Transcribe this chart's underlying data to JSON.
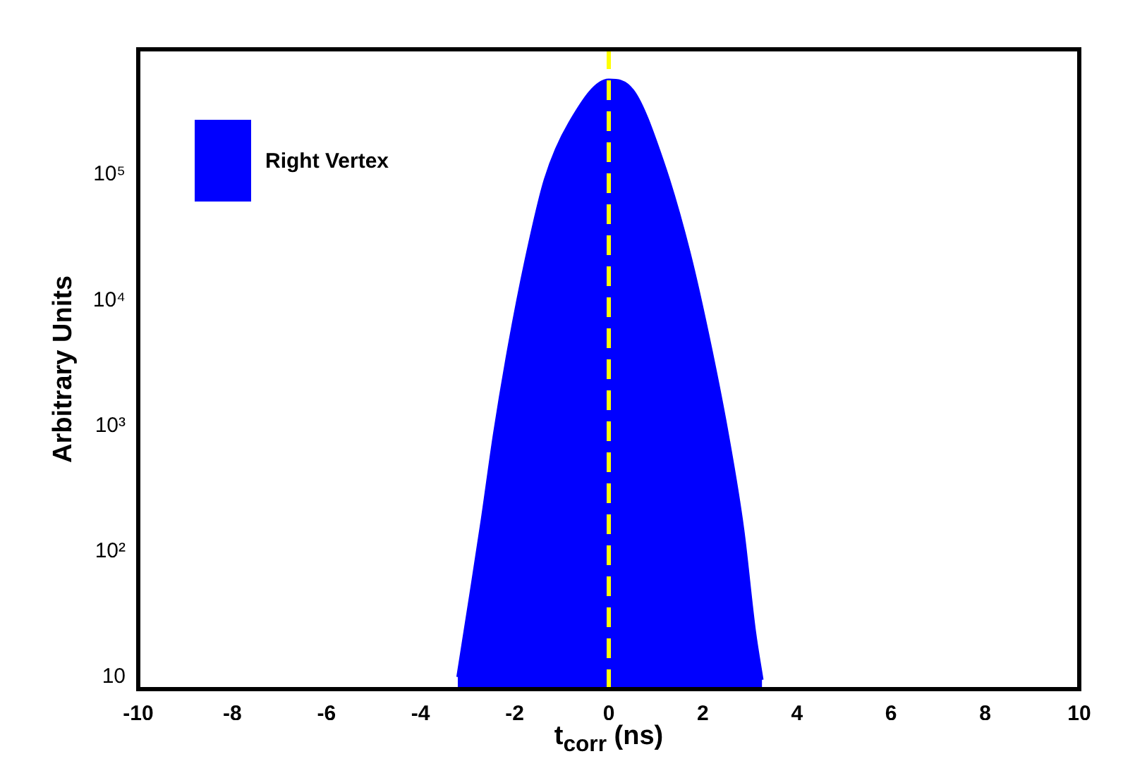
{
  "chart_data": {
    "type": "area",
    "xlabel": "t$_{corr}$ (ns)",
    "ylabel": "Arbitrary Units",
    "xlim": [
      -10,
      10
    ],
    "xticks": [
      -10,
      -8,
      -6,
      -4,
      -2,
      0,
      2,
      4,
      6,
      8,
      10
    ],
    "ylim": [
      8,
      1000000
    ],
    "yticks": [
      10,
      {
        "value": 100,
        "label": "10²"
      },
      {
        "value": 1000,
        "label": "10³"
      },
      {
        "value": 10000,
        "label": "10⁴"
      },
      {
        "value": 100000,
        "label": "10⁵"
      }
    ],
    "log": "y",
    "legend": "top left",
    "grid": false,
    "marker": "none",
    "ref_lines": [
      {
        "axis": "x",
        "value": 0,
        "color": "#ffff00",
        "line_style": "dashed"
      }
    ],
    "series": [
      {
        "name": "Right Vertex",
        "color": "#0000ff",
        "x": [
          -3.21,
          -2.94,
          -2.69,
          -2.43,
          -2.12,
          -1.76,
          -1.35,
          -0.83,
          0,
          0.51,
          1.14,
          1.71,
          2.17,
          2.53,
          2.85,
          3.1,
          3.26
        ],
        "values": [
          10,
          44,
          180,
          870,
          4300,
          21000,
          92000,
          260000,
          570000,
          470000,
          130000,
          24000,
          4100,
          830,
          150,
          23,
          9.5
        ]
      }
    ]
  }
}
